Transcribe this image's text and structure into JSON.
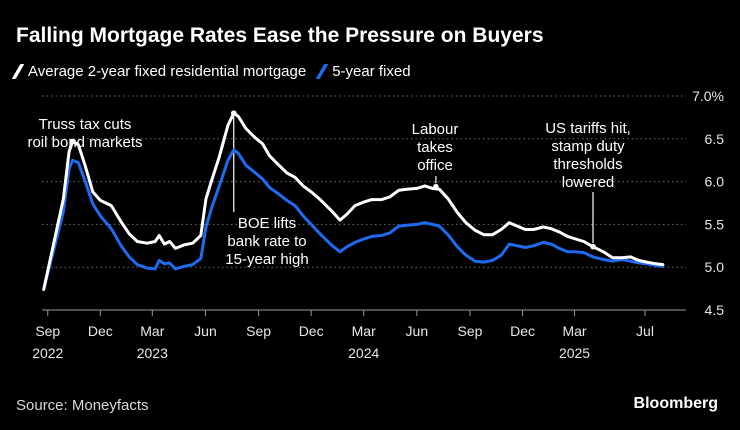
{
  "header": {
    "title": "Falling Mortgage Rates Ease the Pressure on Buyers"
  },
  "footer": {
    "source": "Source: Moneyfacts",
    "brand": "Bloomberg"
  },
  "colors": {
    "series_2yr": "#ffffff",
    "series_5yr": "#1f6bf0",
    "grid": "#6e6e6e",
    "background": "#000000"
  },
  "chart_data": {
    "type": "line",
    "ylim": [
      4.5,
      7.0
    ],
    "xlim": [
      "2022-08-22",
      "2025-09-10"
    ],
    "grid": true,
    "grid_axis": "y",
    "y_axis_side": "right",
    "y_ticks": [
      4.5,
      5.0,
      5.5,
      6.0,
      6.5,
      7.0
    ],
    "y_tick_labels": [
      "4.5",
      "5.0",
      "5.5",
      "6.0",
      "6.5",
      "7.0%"
    ],
    "x_ticks": [
      {
        "date": "2022-09-01",
        "label": "Sep",
        "year": "2022"
      },
      {
        "date": "2022-12-01",
        "label": "Dec",
        "year": ""
      },
      {
        "date": "2023-03-01",
        "label": "Mar",
        "year": "2023"
      },
      {
        "date": "2023-06-01",
        "label": "Jun",
        "year": ""
      },
      {
        "date": "2023-09-01",
        "label": "Sep",
        "year": ""
      },
      {
        "date": "2023-12-01",
        "label": "Dec",
        "year": ""
      },
      {
        "date": "2024-03-01",
        "label": "Mar",
        "year": "2024"
      },
      {
        "date": "2024-06-01",
        "label": "Jun",
        "year": ""
      },
      {
        "date": "2024-09-01",
        "label": "Sep",
        "year": ""
      },
      {
        "date": "2024-12-01",
        "label": "Dec",
        "year": ""
      },
      {
        "date": "2025-03-01",
        "label": "Mar",
        "year": "2025"
      },
      {
        "date": "2025-07-01",
        "label": "Jul",
        "year": ""
      }
    ],
    "series": [
      {
        "name": "Average 2-year fixed residential mortgage",
        "points": [
          [
            "2022-08-25",
            4.74
          ],
          [
            "2022-09-28",
            5.8
          ],
          [
            "2022-10-08",
            6.35
          ],
          [
            "2022-10-14",
            6.47
          ],
          [
            "2022-10-24",
            6.43
          ],
          [
            "2022-11-05",
            6.18
          ],
          [
            "2022-11-18",
            5.88
          ],
          [
            "2022-12-01",
            5.78
          ],
          [
            "2022-12-20",
            5.72
          ],
          [
            "2023-01-06",
            5.53
          ],
          [
            "2023-01-20",
            5.39
          ],
          [
            "2023-02-03",
            5.3
          ],
          [
            "2023-02-20",
            5.28
          ],
          [
            "2023-03-06",
            5.3
          ],
          [
            "2023-03-13",
            5.37
          ],
          [
            "2023-03-22",
            5.27
          ],
          [
            "2023-03-31",
            5.3
          ],
          [
            "2023-04-10",
            5.22
          ],
          [
            "2023-04-25",
            5.26
          ],
          [
            "2023-05-10",
            5.28
          ],
          [
            "2023-05-24",
            5.37
          ],
          [
            "2023-06-02",
            5.8
          ],
          [
            "2023-06-12",
            6.02
          ],
          [
            "2023-06-25",
            6.29
          ],
          [
            "2023-07-10",
            6.66
          ],
          [
            "2023-07-20",
            6.8
          ],
          [
            "2023-07-28",
            6.76
          ],
          [
            "2023-08-10",
            6.62
          ],
          [
            "2023-08-25",
            6.52
          ],
          [
            "2023-09-08",
            6.44
          ],
          [
            "2023-09-20",
            6.3
          ],
          [
            "2023-10-05",
            6.2
          ],
          [
            "2023-10-20",
            6.1
          ],
          [
            "2023-11-03",
            6.05
          ],
          [
            "2023-11-17",
            5.95
          ],
          [
            "2023-12-01",
            5.88
          ],
          [
            "2023-12-15",
            5.8
          ],
          [
            "2024-01-05",
            5.66
          ],
          [
            "2024-01-20",
            5.55
          ],
          [
            "2024-02-01",
            5.62
          ],
          [
            "2024-02-15",
            5.72
          ],
          [
            "2024-03-01",
            5.76
          ],
          [
            "2024-03-15",
            5.79
          ],
          [
            "2024-04-01",
            5.79
          ],
          [
            "2024-04-15",
            5.82
          ],
          [
            "2024-05-01",
            5.9
          ],
          [
            "2024-05-15",
            5.91
          ],
          [
            "2024-06-01",
            5.92
          ],
          [
            "2024-06-15",
            5.95
          ],
          [
            "2024-06-28",
            5.92
          ],
          [
            "2024-07-10",
            5.91
          ],
          [
            "2024-07-25",
            5.8
          ],
          [
            "2024-08-10",
            5.64
          ],
          [
            "2024-08-25",
            5.52
          ],
          [
            "2024-09-10",
            5.43
          ],
          [
            "2024-09-25",
            5.38
          ],
          [
            "2024-10-10",
            5.38
          ],
          [
            "2024-10-25",
            5.44
          ],
          [
            "2024-11-08",
            5.52
          ],
          [
            "2024-11-22",
            5.48
          ],
          [
            "2024-12-06",
            5.44
          ],
          [
            "2024-12-20",
            5.44
          ],
          [
            "2025-01-06",
            5.47
          ],
          [
            "2025-01-20",
            5.45
          ],
          [
            "2025-02-03",
            5.41
          ],
          [
            "2025-02-17",
            5.36
          ],
          [
            "2025-03-03",
            5.33
          ],
          [
            "2025-03-17",
            5.3
          ],
          [
            "2025-04-02",
            5.24
          ],
          [
            "2025-04-20",
            5.18
          ],
          [
            "2025-05-06",
            5.11
          ],
          [
            "2025-05-22",
            5.11
          ],
          [
            "2025-06-06",
            5.12
          ],
          [
            "2025-06-20",
            5.08
          ],
          [
            "2025-07-04",
            5.06
          ],
          [
            "2025-07-20",
            5.04
          ],
          [
            "2025-08-01",
            5.03
          ]
        ]
      },
      {
        "name": "5-year fixed",
        "points": [
          [
            "2022-08-25",
            4.74
          ],
          [
            "2022-09-28",
            5.65
          ],
          [
            "2022-10-08",
            6.15
          ],
          [
            "2022-10-14",
            6.25
          ],
          [
            "2022-10-24",
            6.22
          ],
          [
            "2022-11-05",
            6.0
          ],
          [
            "2022-11-18",
            5.74
          ],
          [
            "2022-12-01",
            5.6
          ],
          [
            "2022-12-20",
            5.45
          ],
          [
            "2023-01-06",
            5.25
          ],
          [
            "2023-01-20",
            5.12
          ],
          [
            "2023-02-03",
            5.03
          ],
          [
            "2023-02-20",
            4.99
          ],
          [
            "2023-03-06",
            4.98
          ],
          [
            "2023-03-13",
            5.08
          ],
          [
            "2023-03-22",
            5.04
          ],
          [
            "2023-03-31",
            5.05
          ],
          [
            "2023-04-10",
            4.98
          ],
          [
            "2023-04-25",
            5.01
          ],
          [
            "2023-05-10",
            5.03
          ],
          [
            "2023-05-24",
            5.1
          ],
          [
            "2023-06-02",
            5.47
          ],
          [
            "2023-06-12",
            5.7
          ],
          [
            "2023-06-25",
            5.95
          ],
          [
            "2023-07-10",
            6.25
          ],
          [
            "2023-07-20",
            6.37
          ],
          [
            "2023-07-28",
            6.33
          ],
          [
            "2023-08-10",
            6.19
          ],
          [
            "2023-08-25",
            6.11
          ],
          [
            "2023-09-08",
            6.03
          ],
          [
            "2023-09-20",
            5.93
          ],
          [
            "2023-10-05",
            5.86
          ],
          [
            "2023-10-20",
            5.78
          ],
          [
            "2023-11-03",
            5.72
          ],
          [
            "2023-11-17",
            5.6
          ],
          [
            "2023-12-01",
            5.5
          ],
          [
            "2023-12-15",
            5.4
          ],
          [
            "2024-01-05",
            5.26
          ],
          [
            "2024-01-20",
            5.18
          ],
          [
            "2024-02-01",
            5.24
          ],
          [
            "2024-02-15",
            5.29
          ],
          [
            "2024-03-01",
            5.33
          ],
          [
            "2024-03-15",
            5.36
          ],
          [
            "2024-04-01",
            5.37
          ],
          [
            "2024-04-15",
            5.4
          ],
          [
            "2024-05-01",
            5.48
          ],
          [
            "2024-05-15",
            5.49
          ],
          [
            "2024-06-01",
            5.5
          ],
          [
            "2024-06-15",
            5.52
          ],
          [
            "2024-06-28",
            5.5
          ],
          [
            "2024-07-10",
            5.48
          ],
          [
            "2024-07-25",
            5.38
          ],
          [
            "2024-08-10",
            5.24
          ],
          [
            "2024-08-25",
            5.14
          ],
          [
            "2024-09-10",
            5.07
          ],
          [
            "2024-09-25",
            5.06
          ],
          [
            "2024-10-10",
            5.08
          ],
          [
            "2024-10-25",
            5.14
          ],
          [
            "2024-11-08",
            5.27
          ],
          [
            "2024-11-22",
            5.25
          ],
          [
            "2024-12-06",
            5.23
          ],
          [
            "2024-12-20",
            5.25
          ],
          [
            "2025-01-06",
            5.29
          ],
          [
            "2025-01-20",
            5.27
          ],
          [
            "2025-02-03",
            5.22
          ],
          [
            "2025-02-17",
            5.18
          ],
          [
            "2025-03-03",
            5.18
          ],
          [
            "2025-03-17",
            5.17
          ],
          [
            "2025-04-02",
            5.12
          ],
          [
            "2025-04-20",
            5.09
          ],
          [
            "2025-05-06",
            5.07
          ],
          [
            "2025-05-22",
            5.09
          ],
          [
            "2025-06-06",
            5.07
          ],
          [
            "2025-06-20",
            5.05
          ],
          [
            "2025-07-04",
            5.04
          ],
          [
            "2025-07-20",
            5.02
          ],
          [
            "2025-08-01",
            5.01
          ]
        ]
      }
    ],
    "annotations": [
      {
        "lines": [
          "Truss tax cuts",
          "roil bond markets"
        ],
        "date": "2022-10-14",
        "value": 6.47
      },
      {
        "lines": [
          "BOE lifts",
          "bank rate to",
          "15-year high"
        ],
        "date": "2023-07-20",
        "value": 6.8
      },
      {
        "lines": [
          "Labour",
          "takes",
          "office"
        ],
        "date": "2024-07-04",
        "value": 5.94
      },
      {
        "lines": [
          "US tariffs hit,",
          "stamp duty",
          "thresholds",
          "lowered"
        ],
        "date": "2025-04-02",
        "value": 5.24
      }
    ]
  }
}
